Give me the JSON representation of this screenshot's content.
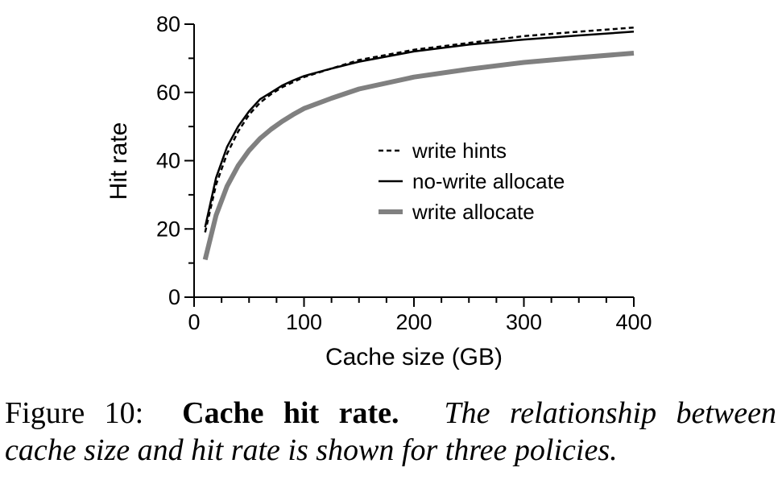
{
  "chart_data": {
    "type": "line",
    "title": "",
    "xlabel": "Cache size (GB)",
    "ylabel": "Hit rate",
    "xlim": [
      0,
      400
    ],
    "ylim": [
      0,
      80
    ],
    "xticks": [
      0,
      100,
      200,
      300,
      400
    ],
    "yticks": [
      0,
      20,
      40,
      60,
      80
    ],
    "xtick_labels": [
      "0",
      "100",
      "200",
      "300",
      "400"
    ],
    "ytick_labels": [
      "0",
      "20",
      "40",
      "60",
      "80"
    ],
    "grid": false,
    "legend_position": "center-right",
    "series": [
      {
        "name": "write hints",
        "style": "dashed",
        "color": "#000000",
        "x": [
          10,
          20,
          30,
          40,
          50,
          60,
          70,
          80,
          90,
          100,
          125,
          150,
          200,
          250,
          300,
          350,
          400
        ],
        "y": [
          19,
          33,
          42,
          48.5,
          53.5,
          57,
          59.5,
          61.5,
          63,
          64.5,
          67,
          69.5,
          72.5,
          74.5,
          76.5,
          77.8,
          79
        ]
      },
      {
        "name": "no-write allocate",
        "style": "solid",
        "color": "#000000",
        "x": [
          10,
          20,
          30,
          40,
          50,
          60,
          70,
          80,
          90,
          100,
          125,
          150,
          200,
          250,
          300,
          350,
          400
        ],
        "y": [
          20.5,
          35,
          44,
          50,
          54.5,
          58,
          60,
          62,
          63.5,
          64.8,
          67,
          69,
          72,
          74,
          75.5,
          76.7,
          77.8
        ]
      },
      {
        "name": "write allocate",
        "style": "thick",
        "color": "#808080",
        "x": [
          10,
          20,
          30,
          40,
          50,
          60,
          70,
          80,
          90,
          100,
          125,
          150,
          200,
          250,
          300,
          350,
          400
        ],
        "y": [
          11,
          24,
          32.5,
          38.5,
          43,
          46.5,
          49.2,
          51.5,
          53.5,
          55.3,
          58.3,
          61,
          64.5,
          66.8,
          68.8,
          70.2,
          71.5
        ]
      }
    ]
  },
  "caption": {
    "number": "Figure 10:",
    "bold": "Cache hit rate.",
    "italic_line1": "The relationship between",
    "italic_line2": "cache size and hit rate is shown for three policies."
  }
}
